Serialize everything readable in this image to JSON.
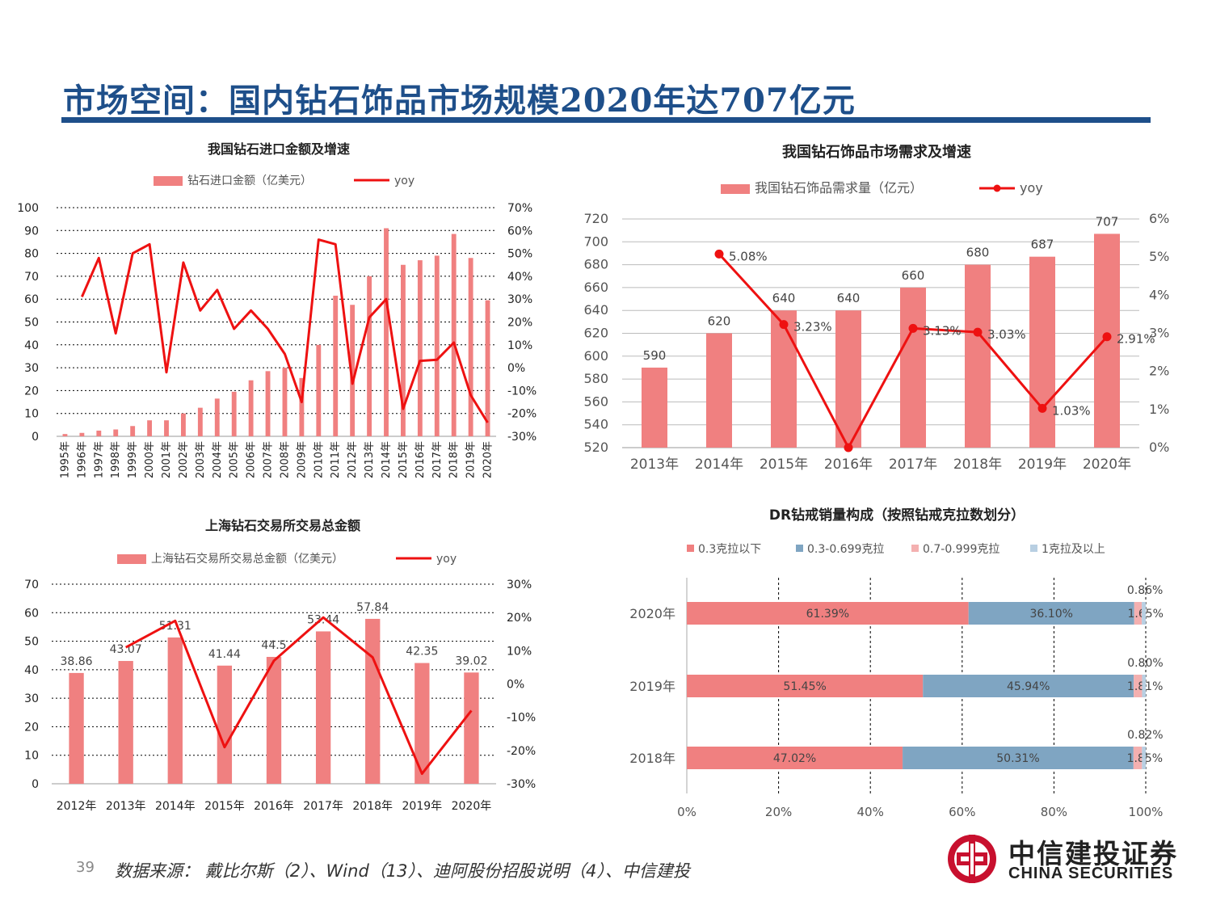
{
  "slide": {
    "title": "市场空间：国内钻石饰品市场规模2020年达707亿元",
    "page_number": "39",
    "source": "数据来源：  戴比尔斯（2）、Wind（13）、迪阿股份招股说明（4）、中信建投",
    "logo_cn": "中信建投证券",
    "logo_en": "CHINA SECURITIES"
  },
  "colors": {
    "bar": "#f08080",
    "line": "#ee1111",
    "brand": "#1e4f8a",
    "steel": "#7fa5c2",
    "pink": "#f4b0b0",
    "lightblue": "#b8cfe2"
  },
  "chart_data": [
    {
      "id": "import",
      "type": "bar+line",
      "title": "我国钻石进口金额及增速",
      "legend": [
        "钻石进口金额（亿美元）",
        "yoy"
      ],
      "categories": [
        "1995年",
        "1996年",
        "1997年",
        "1998年",
        "1999年",
        "2000年",
        "2001年",
        "2002年",
        "2003年",
        "2004年",
        "2005年",
        "2006年",
        "2007年",
        "2008年",
        "2009年",
        "2010年",
        "2011年",
        "2012年",
        "2013年",
        "2014年",
        "2015年",
        "2016年",
        "2017年",
        "2018年",
        "2019年",
        "2020年"
      ],
      "values": [
        1,
        1.5,
        2.5,
        3,
        4.5,
        7,
        7,
        10,
        12.5,
        16.5,
        19.5,
        24.5,
        28.5,
        30,
        25.5,
        40,
        61.5,
        57.5,
        70,
        91,
        75,
        77,
        79,
        88.5,
        78,
        59.5
      ],
      "yoy": [
        null,
        31,
        48,
        15,
        50,
        54,
        -2,
        46,
        25,
        34,
        17,
        25,
        17,
        6,
        -15,
        56,
        54,
        -7,
        22,
        30,
        -18,
        3,
        3.5,
        11,
        -12,
        -24
      ],
      "ylim": [
        0,
        100
      ],
      "y_ticks": [
        "100",
        "90",
        "80",
        "70",
        "60",
        "50",
        "40",
        "30",
        "20",
        "10",
        "0"
      ],
      "y2lim": [
        -30,
        70
      ],
      "y2_ticks": [
        "70%",
        "60%",
        "50%",
        "40%",
        "30%",
        "20%",
        "10%",
        "0%",
        "-10%",
        "-20%",
        "-30%"
      ]
    },
    {
      "id": "demand",
      "type": "bar+line",
      "title": "我国钻石饰品市场需求及增速",
      "legend": [
        "我国钻石饰品需求量（亿元）",
        "yoy"
      ],
      "categories": [
        "2013年",
        "2014年",
        "2015年",
        "2016年",
        "2017年",
        "2018年",
        "2019年",
        "2020年"
      ],
      "values": [
        590,
        620,
        640,
        640,
        660,
        680,
        687,
        707
      ],
      "value_labels": [
        "590",
        "620",
        "640",
        "640",
        "660",
        "680",
        "687",
        "707"
      ],
      "yoy": [
        null,
        5.08,
        3.23,
        0,
        3.13,
        3.03,
        1.03,
        2.91
      ],
      "yoy_labels": [
        "",
        "5.08%",
        "3.23%",
        "",
        "3.13%",
        "3.03%",
        "1.03%",
        "2.91%"
      ],
      "ylim": [
        520,
        720
      ],
      "y_ticks": [
        "720",
        "700",
        "680",
        "660",
        "640",
        "620",
        "600",
        "580",
        "560",
        "540",
        "520"
      ],
      "y2lim": [
        0,
        6
      ],
      "y2_ticks": [
        "6%",
        "5%",
        "4%",
        "3%",
        "2%",
        "1%",
        "0%"
      ]
    },
    {
      "id": "shanghai",
      "type": "bar+line",
      "title": "上海钻石交易所交易总金额",
      "legend": [
        "上海钻石交易所交易总金额（亿美元）",
        "yoy"
      ],
      "categories": [
        "2012年",
        "2013年",
        "2014年",
        "2015年",
        "2016年",
        "2017年",
        "2018年",
        "2019年",
        "2020年"
      ],
      "values": [
        38.86,
        43.07,
        51.31,
        41.44,
        44.5,
        53.44,
        57.84,
        42.35,
        39.02
      ],
      "value_labels": [
        "38.86",
        "43.07",
        "51.31",
        "41.44",
        "44.5",
        "53.44",
        "57.84",
        "42.35",
        "39.02"
      ],
      "yoy": [
        null,
        11,
        19,
        -19,
        7,
        20,
        8,
        -27,
        -8
      ],
      "ylim": [
        0,
        70
      ],
      "y_ticks": [
        "70",
        "60",
        "50",
        "40",
        "30",
        "20",
        "10",
        "0"
      ],
      "y2lim": [
        -30,
        30
      ],
      "y2_ticks": [
        "30%",
        "20%",
        "10%",
        "0%",
        "-10%",
        "-20%",
        "-30%"
      ]
    },
    {
      "id": "dr",
      "type": "stacked-bar-horizontal",
      "title": "DR钻戒销量构成（按照钻戒克拉数划分）",
      "legend": [
        "0.3克拉以下",
        "0.3-0.699克拉",
        "0.7-0.999克拉",
        "1克拉及以上"
      ],
      "categories": [
        "2020年",
        "2019年",
        "2018年"
      ],
      "series": [
        {
          "name": "0.3克拉以下",
          "values": [
            61.39,
            51.45,
            47.02
          ],
          "labels": [
            "61.39%",
            "51.45%",
            "47.02%"
          ]
        },
        {
          "name": "0.3-0.699克拉",
          "values": [
            36.1,
            45.94,
            50.31
          ],
          "labels": [
            "36.10%",
            "45.94%",
            "50.31%"
          ]
        },
        {
          "name": "0.7-0.999克拉",
          "values": [
            1.65,
            1.81,
            1.85
          ],
          "labels": [
            "1.65%",
            "1.81%",
            "1.85%"
          ]
        },
        {
          "name": "1克拉及以上",
          "values": [
            0.86,
            0.8,
            0.82
          ],
          "labels": [
            "0.86%",
            "0.80%",
            "0.82%"
          ]
        }
      ],
      "x_ticks": [
        "0%",
        "20%",
        "40%",
        "60%",
        "80%",
        "100%"
      ],
      "xlim": [
        0,
        100
      ]
    }
  ]
}
